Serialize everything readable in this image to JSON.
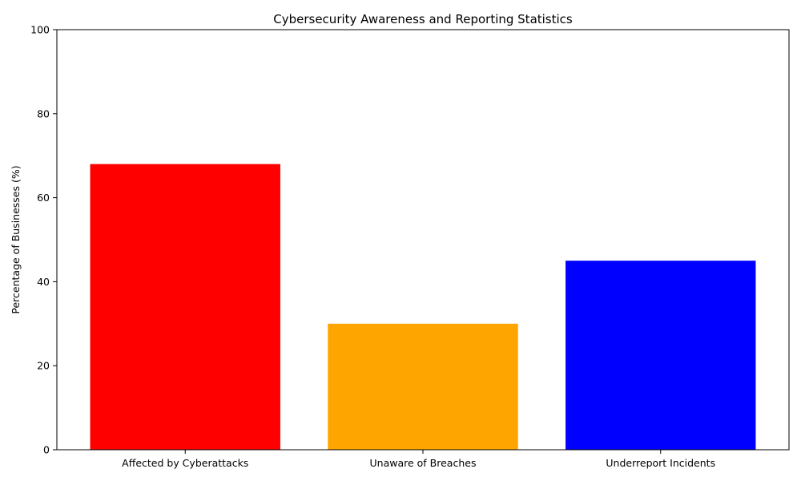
{
  "chart_data": {
    "type": "bar",
    "title": "Cybersecurity Awareness and Reporting Statistics",
    "xlabel": "",
    "ylabel": "Percentage of Businesses (%)",
    "categories": [
      "Affected by Cyberattacks",
      "Unaware of Breaches",
      "Underreport Incidents"
    ],
    "values": [
      68,
      30,
      45
    ],
    "colors": [
      "#ff0000",
      "#ffa500",
      "#0000ff"
    ],
    "ylim": [
      0,
      100
    ],
    "yticks": [
      0,
      20,
      40,
      60,
      80,
      100
    ],
    "grid": false,
    "legend": "none"
  }
}
